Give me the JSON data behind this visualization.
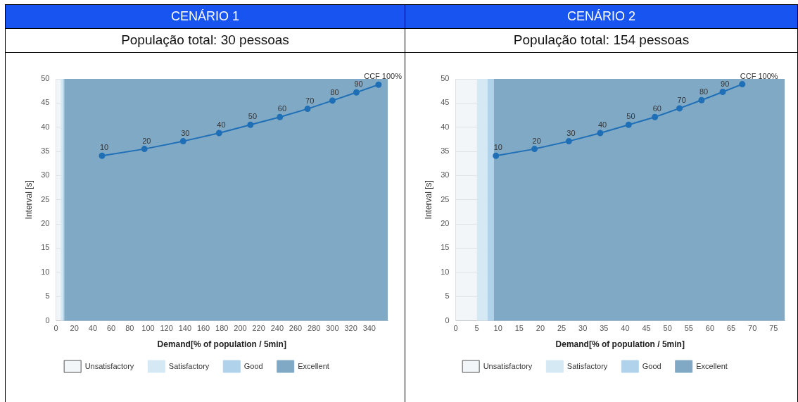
{
  "chart_data": [
    {
      "type": "line",
      "title": "CENÁRIO 1",
      "subtitle": "População total: 30 pessoas",
      "xlabel": "Demand[% of population / 5min]",
      "ylabel": "Interval [s]",
      "x": [
        50,
        96,
        138,
        177,
        211,
        243,
        273,
        300,
        326,
        350
      ],
      "series": [
        {
          "color": "#1f6fb7",
          "values": [
            34.1,
            35.5,
            37.1,
            38.8,
            40.5,
            42.1,
            43.8,
            45.5,
            47.2,
            48.8
          ]
        }
      ],
      "annotations": [
        {
          "text": "10",
          "x": 50,
          "y": 34.1
        },
        {
          "text": "20",
          "x": 96,
          "y": 35.5
        },
        {
          "text": "30",
          "x": 138,
          "y": 37.1
        },
        {
          "text": "40",
          "x": 177,
          "y": 38.8
        },
        {
          "text": "50",
          "x": 211,
          "y": 40.5
        },
        {
          "text": "60",
          "x": 243,
          "y": 42.1
        },
        {
          "text": "70",
          "x": 273,
          "y": 43.8
        },
        {
          "text": "80",
          "x": 300,
          "y": 45.5
        },
        {
          "text": "90",
          "x": 326,
          "y": 47.2
        },
        {
          "text": "CCF 100%",
          "x": 350,
          "y": 48.8
        }
      ],
      "xlim": [
        0,
        360
      ],
      "xticks": [
        0,
        20,
        40,
        60,
        80,
        100,
        120,
        140,
        160,
        180,
        200,
        220,
        240,
        260,
        280,
        300,
        320,
        340
      ],
      "ylim": [
        0,
        50
      ],
      "yticks": [
        0,
        5,
        10,
        15,
        20,
        25,
        30,
        35,
        40,
        45,
        50
      ],
      "bands": [
        {
          "axis": "x",
          "from": 0,
          "to": 5,
          "label": "Unsatisfactory",
          "color": "#f2f6f9"
        },
        {
          "axis": "x",
          "from": 5,
          "to": 7.5,
          "label": "Satisfactory",
          "color": "#d5e9f5"
        },
        {
          "axis": "x",
          "from": 7.5,
          "to": 9,
          "label": "Good",
          "color": "#b0d2eb"
        },
        {
          "axis": "x",
          "from": 9,
          "to": 360,
          "label": "Excellent",
          "color": "#80a9c5"
        }
      ],
      "grid": "y",
      "legend": "bottom",
      "marker": "circle"
    },
    {
      "type": "line",
      "title": "CENÁRIO 2",
      "subtitle": "População total: 154 pessoas",
      "xlabel": "Demand[% of population / 5min]",
      "ylabel": "Interval [s]",
      "x": [
        9.5,
        18.6,
        26.7,
        34.1,
        40.8,
        47.0,
        52.8,
        58.0,
        63.0,
        67.6
      ],
      "series": [
        {
          "color": "#1f6fb7",
          "values": [
            34.1,
            35.5,
            37.1,
            38.8,
            40.5,
            42.1,
            43.9,
            45.6,
            47.3,
            48.9
          ]
        }
      ],
      "annotations": [
        {
          "text": "10",
          "x": 9.5,
          "y": 34.1
        },
        {
          "text": "20",
          "x": 18.6,
          "y": 35.5
        },
        {
          "text": "30",
          "x": 26.7,
          "y": 37.1
        },
        {
          "text": "40",
          "x": 34.1,
          "y": 38.8
        },
        {
          "text": "50",
          "x": 40.8,
          "y": 40.5
        },
        {
          "text": "60",
          "x": 47.0,
          "y": 42.1
        },
        {
          "text": "70",
          "x": 52.8,
          "y": 43.9
        },
        {
          "text": "80",
          "x": 58.0,
          "y": 45.6
        },
        {
          "text": "90",
          "x": 63.0,
          "y": 47.3
        },
        {
          "text": "CCF 100%",
          "x": 67.6,
          "y": 48.9
        }
      ],
      "xlim": [
        0,
        77.6
      ],
      "xticks": [
        0,
        5,
        10,
        15,
        20,
        25,
        30,
        35,
        40,
        45,
        50,
        55,
        60,
        65,
        70,
        75
      ],
      "ylim": [
        0,
        50
      ],
      "yticks": [
        0,
        5,
        10,
        15,
        20,
        25,
        30,
        35,
        40,
        45,
        50
      ],
      "bands": [
        {
          "axis": "x",
          "from": 0,
          "to": 5,
          "label": "Unsatisfactory",
          "color": "#f2f6f9"
        },
        {
          "axis": "x",
          "from": 5,
          "to": 7.5,
          "label": "Satisfactory",
          "color": "#d5e9f5"
        },
        {
          "axis": "x",
          "from": 7.5,
          "to": 9,
          "label": "Good",
          "color": "#b0d2eb"
        },
        {
          "axis": "x",
          "from": 9,
          "to": 77.6,
          "label": "Excellent",
          "color": "#80a9c5"
        }
      ],
      "grid": "y",
      "legend": "bottom",
      "marker": "circle"
    }
  ]
}
